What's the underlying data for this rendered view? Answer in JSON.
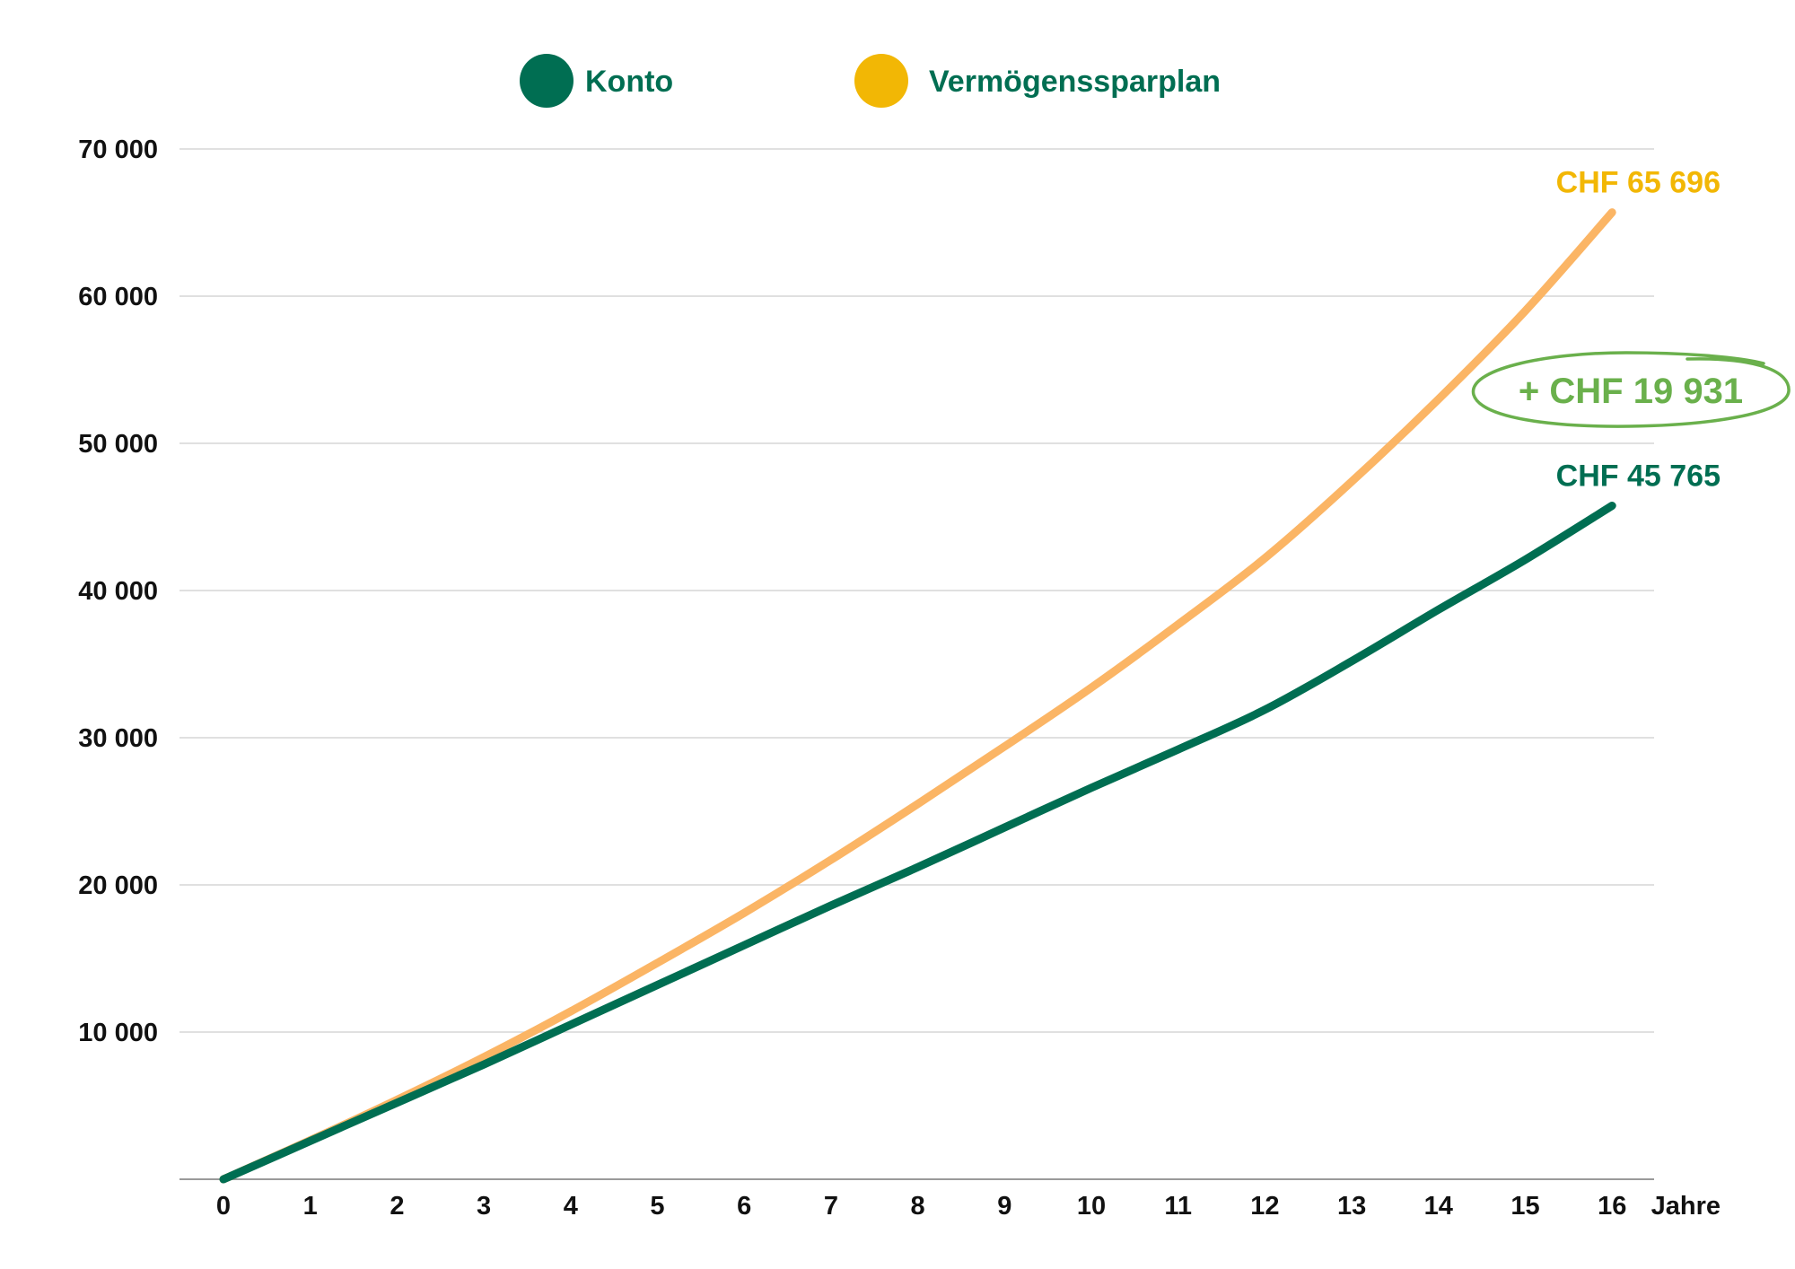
{
  "chart_data": {
    "type": "line",
    "x": [
      0,
      1,
      2,
      3,
      4,
      5,
      6,
      7,
      8,
      9,
      10,
      11,
      12,
      13,
      14,
      15,
      16
    ],
    "x_unit_label": "Jahre",
    "ylim": [
      0,
      70000
    ],
    "y_ticks": [
      10000,
      20000,
      30000,
      40000,
      50000,
      60000,
      70000
    ],
    "y_tick_labels": [
      "10 000",
      "20 000",
      "30 000",
      "40 000",
      "50 000",
      "60 000",
      "70 000"
    ],
    "grid": true,
    "legend_position": "top",
    "series": [
      {
        "name": "Konto",
        "color": "#006e52",
        "values": [
          0,
          2600,
          5200,
          7800,
          10500,
          13200,
          15900,
          18600,
          21200,
          23900,
          26600,
          29200,
          31900,
          35200,
          38700,
          42100,
          45765
        ],
        "end_label": "CHF 45 765"
      },
      {
        "name": "Vermögenssparplan",
        "color": "#fbb565",
        "legend_color": "#f2b705",
        "label_color": "#f2b705",
        "values": [
          0,
          2650,
          5400,
          8300,
          11400,
          14700,
          18100,
          21700,
          25500,
          29400,
          33400,
          37700,
          42200,
          47400,
          53000,
          59000,
          65696
        ],
        "end_label": "CHF 65 696"
      }
    ],
    "annotation": {
      "text": "+ CHF 19 931",
      "color": "#6ab04c"
    }
  }
}
